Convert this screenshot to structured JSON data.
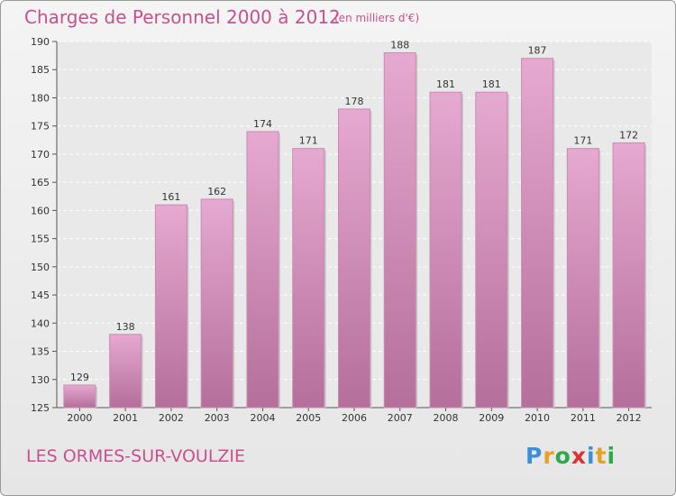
{
  "header": {
    "title": "Charges de Personnel 2000 à 2012",
    "subtitle": "(en milliers d'€)"
  },
  "footer": {
    "commune": "LES ORMES-SUR-VOULZIE",
    "logo_text": "Proxiti",
    "logo_colors": [
      "#3a8fd8",
      "#e8a020",
      "#2ea84a",
      "#e03030",
      "#3a8fd8",
      "#e8a020",
      "#2ea84a"
    ]
  },
  "colors": {
    "bar_top": "#e6a9d0",
    "bar_bottom": "#b46f9a",
    "bar_edge": "#c98ab2",
    "plot_bg": "#e9e9e9",
    "grid": "#ffffff",
    "text_accent": "#c8508e"
  },
  "chart_data": {
    "type": "bar",
    "title": "Charges de Personnel 2000 à 2012",
    "subtitle": "(en milliers d'€)",
    "categories": [
      "2000",
      "2001",
      "2002",
      "2003",
      "2004",
      "2005",
      "2006",
      "2007",
      "2008",
      "2009",
      "2010",
      "2011",
      "2012"
    ],
    "values": [
      129,
      138,
      161,
      162,
      174,
      171,
      178,
      188,
      181,
      181,
      187,
      171,
      172
    ],
    "ylim": [
      125,
      190
    ],
    "yticks": [
      125,
      130,
      135,
      140,
      145,
      150,
      155,
      160,
      165,
      170,
      175,
      180,
      185,
      190
    ],
    "grid": "dashed horizontal",
    "data_labels": true
  }
}
